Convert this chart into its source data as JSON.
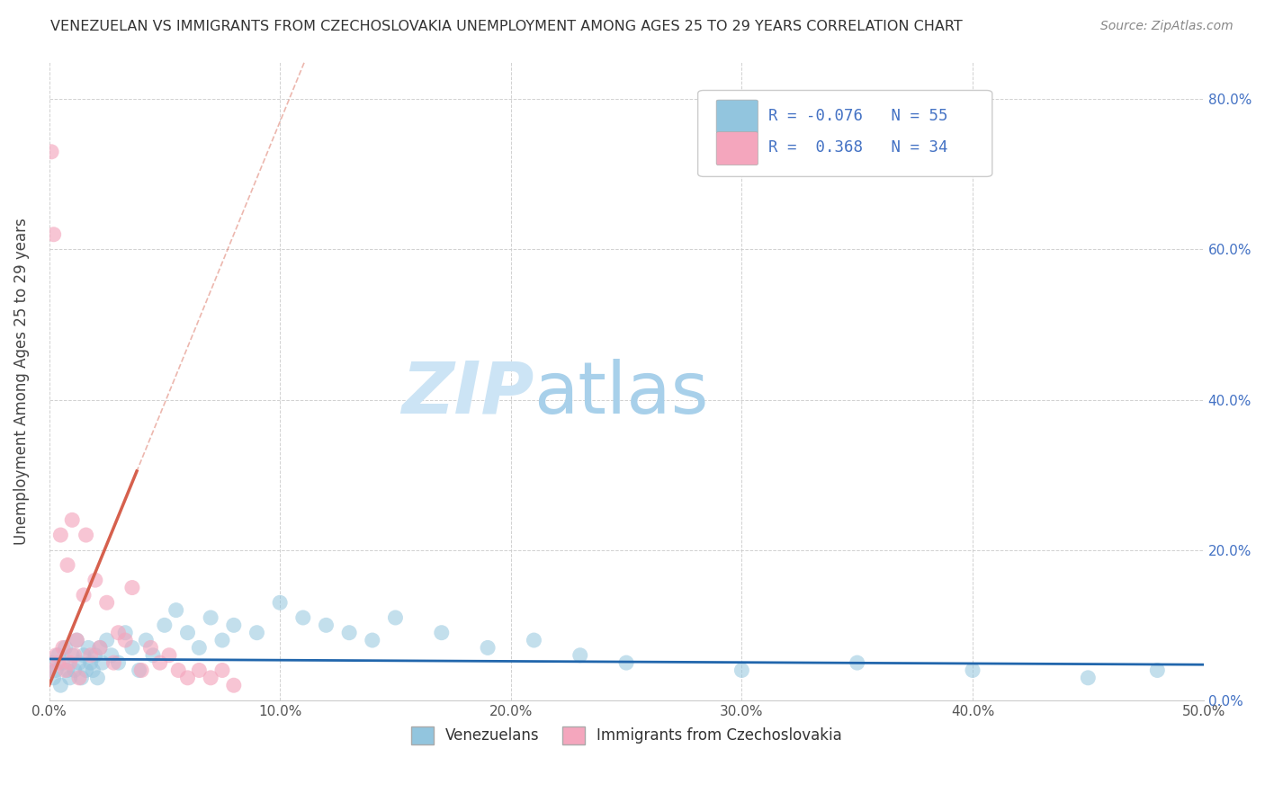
{
  "title": "VENEZUELAN VS IMMIGRANTS FROM CZECHOSLOVAKIA UNEMPLOYMENT AMONG AGES 25 TO 29 YEARS CORRELATION CHART",
  "source": "Source: ZipAtlas.com",
  "ylabel_label": "Unemployment Among Ages 25 to 29 years",
  "legend_labels": [
    "Venezuelans",
    "Immigrants from Czechoslovakia"
  ],
  "blue_R": "-0.076",
  "blue_N": "55",
  "pink_R": "0.368",
  "pink_N": "34",
  "blue_color": "#92c5de",
  "pink_color": "#f4a6bd",
  "blue_line_color": "#2166ac",
  "pink_line_color": "#d6604d",
  "blue_scatter_x": [
    0.001,
    0.002,
    0.003,
    0.004,
    0.005,
    0.006,
    0.007,
    0.008,
    0.009,
    0.01,
    0.011,
    0.012,
    0.013,
    0.014,
    0.015,
    0.016,
    0.017,
    0.018,
    0.019,
    0.02,
    0.021,
    0.022,
    0.023,
    0.025,
    0.027,
    0.03,
    0.033,
    0.036,
    0.039,
    0.042,
    0.045,
    0.05,
    0.055,
    0.06,
    0.065,
    0.07,
    0.075,
    0.08,
    0.09,
    0.1,
    0.11,
    0.12,
    0.13,
    0.14,
    0.15,
    0.17,
    0.19,
    0.21,
    0.23,
    0.25,
    0.3,
    0.35,
    0.4,
    0.45,
    0.48
  ],
  "blue_scatter_y": [
    0.05,
    0.03,
    0.04,
    0.06,
    0.02,
    0.05,
    0.07,
    0.04,
    0.03,
    0.06,
    0.04,
    0.08,
    0.05,
    0.03,
    0.06,
    0.04,
    0.07,
    0.05,
    0.04,
    0.06,
    0.03,
    0.07,
    0.05,
    0.08,
    0.06,
    0.05,
    0.09,
    0.07,
    0.04,
    0.08,
    0.06,
    0.1,
    0.12,
    0.09,
    0.07,
    0.11,
    0.08,
    0.1,
    0.09,
    0.13,
    0.11,
    0.1,
    0.09,
    0.08,
    0.11,
    0.09,
    0.07,
    0.08,
    0.06,
    0.05,
    0.04,
    0.05,
    0.04,
    0.03,
    0.04
  ],
  "pink_scatter_x": [
    0.0,
    0.001,
    0.002,
    0.003,
    0.004,
    0.005,
    0.006,
    0.007,
    0.008,
    0.009,
    0.01,
    0.011,
    0.012,
    0.013,
    0.015,
    0.016,
    0.018,
    0.02,
    0.022,
    0.025,
    0.028,
    0.03,
    0.033,
    0.036,
    0.04,
    0.044,
    0.048,
    0.052,
    0.056,
    0.06,
    0.065,
    0.07,
    0.075,
    0.08
  ],
  "pink_scatter_y": [
    0.04,
    0.73,
    0.62,
    0.06,
    0.05,
    0.22,
    0.07,
    0.04,
    0.18,
    0.05,
    0.24,
    0.06,
    0.08,
    0.03,
    0.14,
    0.22,
    0.06,
    0.16,
    0.07,
    0.13,
    0.05,
    0.09,
    0.08,
    0.15,
    0.04,
    0.07,
    0.05,
    0.06,
    0.04,
    0.03,
    0.04,
    0.03,
    0.04,
    0.02
  ],
  "xlim": [
    0,
    0.5
  ],
  "ylim": [
    0,
    0.85
  ],
  "xticks": [
    0.0,
    0.1,
    0.2,
    0.3,
    0.4,
    0.5
  ],
  "yticks": [
    0.0,
    0.2,
    0.4,
    0.6,
    0.8
  ],
  "background_color": "#ffffff",
  "grid_color": "#cccccc",
  "title_color": "#333333",
  "source_color": "#888888",
  "ylabel_color": "#444444",
  "yticklabel_color": "#4472c4",
  "xticklabel_color": "#555555"
}
